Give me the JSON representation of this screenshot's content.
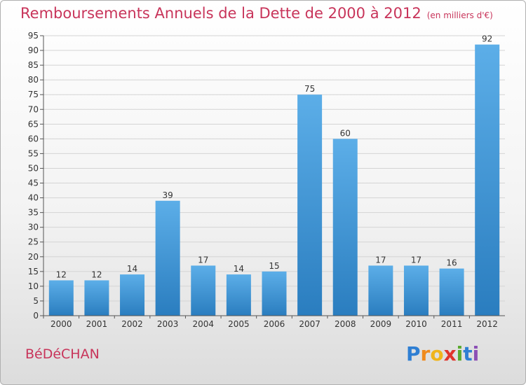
{
  "title": "Remboursements Annuels de la Dette de 2000 à 2012",
  "unit_note": "(en milliers d'€)",
  "commune": "BéDéCHAN",
  "logo": {
    "text": "Proxiti",
    "letters": [
      {
        "ch": "P",
        "color": "#2f7fd3"
      },
      {
        "ch": "r",
        "color": "#f08a1c"
      },
      {
        "ch": "o",
        "color": "#f0b51c"
      },
      {
        "ch": "x",
        "color": "#e0352b"
      },
      {
        "ch": "i",
        "color": "#5aaa2e"
      },
      {
        "ch": "t",
        "color": "#2f7fd3"
      },
      {
        "ch": "i",
        "color": "#8c4fb5"
      }
    ]
  },
  "colors": {
    "accent": "#c8345a",
    "bar_top": "#5caee8",
    "bar_bottom": "#2a7dbf"
  },
  "chart_data": {
    "type": "bar",
    "categories": [
      "2000",
      "2001",
      "2002",
      "2003",
      "2004",
      "2005",
      "2006",
      "2007",
      "2008",
      "2009",
      "2010",
      "2011",
      "2012"
    ],
    "values": [
      12,
      12,
      14,
      39,
      17,
      14,
      15,
      75,
      60,
      17,
      17,
      16,
      92
    ],
    "ylim": [
      0,
      95
    ],
    "yticks": [
      0,
      5,
      10,
      15,
      20,
      25,
      30,
      35,
      40,
      45,
      50,
      55,
      60,
      65,
      70,
      75,
      80,
      85,
      90,
      95
    ],
    "grid": true,
    "xlabel": "",
    "ylabel": ""
  }
}
